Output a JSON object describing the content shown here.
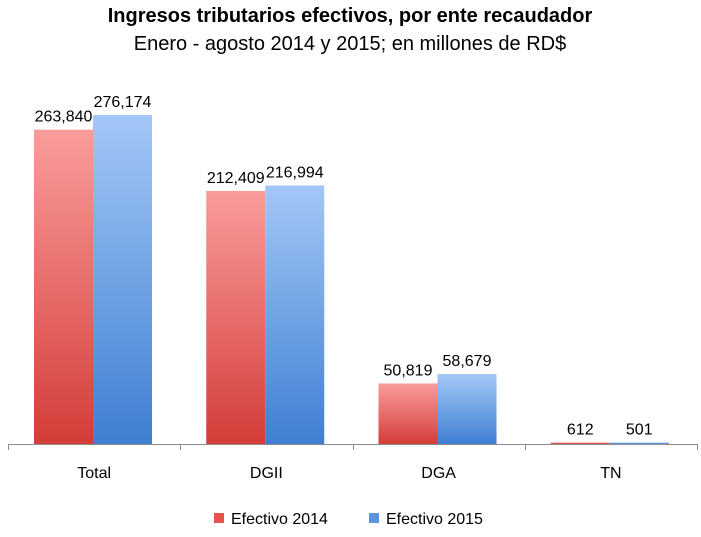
{
  "chart_data": {
    "type": "bar",
    "title": "Ingresos tributarios efectivos, por ente recaudador",
    "subtitle": "Enero - agosto 2014 y 2015; en millones de RD$",
    "categories": [
      "Total",
      "DGII",
      "DGA",
      "TN"
    ],
    "series": [
      {
        "name": "Efectivo 2014",
        "values": [
          263840,
          212409,
          50819,
          612
        ],
        "labels": [
          "263,840",
          "212,409",
          "50,819",
          "612"
        ],
        "color": "#e8534f"
      },
      {
        "name": "Efectivo 2015",
        "values": [
          276174,
          216994,
          58679,
          501
        ],
        "labels": [
          "276,174",
          "216,994",
          "58,679",
          "501"
        ],
        "color": "#5b95e0"
      }
    ],
    "ylim": [
      0,
      276174
    ],
    "legend": "bottom",
    "grid": false
  }
}
